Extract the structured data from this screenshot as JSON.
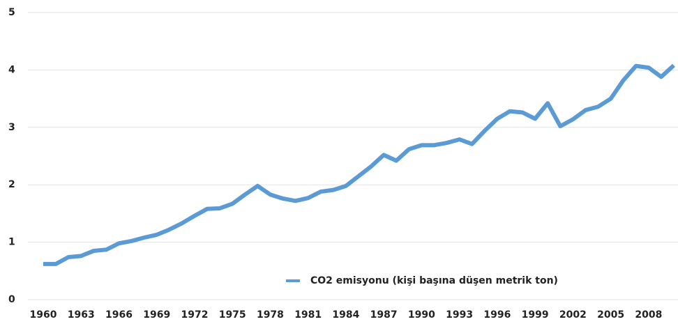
{
  "chart_data": {
    "type": "line",
    "x": [
      1960,
      1961,
      1962,
      1963,
      1964,
      1965,
      1966,
      1967,
      1968,
      1969,
      1970,
      1971,
      1972,
      1973,
      1974,
      1975,
      1976,
      1977,
      1978,
      1979,
      1980,
      1981,
      1982,
      1983,
      1984,
      1985,
      1986,
      1987,
      1988,
      1989,
      1990,
      1991,
      1992,
      1993,
      1994,
      1995,
      1996,
      1997,
      1998,
      1999,
      2000,
      2001,
      2002,
      2003,
      2004,
      2005,
      2006,
      2007,
      2008,
      2009,
      2010
    ],
    "series": [
      {
        "name": "CO2 emisyonu (kişi başına düşen metrik ton)",
        "color": "#5b9bd5",
        "values": [
          0.62,
          0.62,
          0.74,
          0.76,
          0.85,
          0.87,
          0.98,
          1.02,
          1.08,
          1.13,
          1.22,
          1.33,
          1.46,
          1.58,
          1.59,
          1.67,
          1.83,
          1.98,
          1.83,
          1.76,
          1.72,
          1.77,
          1.88,
          1.91,
          1.98,
          2.15,
          2.32,
          2.52,
          2.42,
          2.62,
          2.69,
          2.69,
          2.73,
          2.79,
          2.71,
          2.94,
          3.15,
          3.28,
          3.26,
          3.15,
          3.42,
          3.02,
          3.14,
          3.3,
          3.36,
          3.5,
          3.82,
          4.07,
          4.04,
          3.88,
          4.08
        ]
      }
    ],
    "xlim": [
      1960,
      2010
    ],
    "xticks": [
      1960,
      1963,
      1966,
      1969,
      1972,
      1975,
      1978,
      1981,
      1984,
      1987,
      1990,
      1993,
      1996,
      1999,
      2002,
      2005,
      2008
    ],
    "ylim": [
      0,
      5
    ],
    "yticks": [
      0,
      1,
      2,
      3,
      4,
      5
    ],
    "grid": true,
    "legend": "lower right"
  }
}
